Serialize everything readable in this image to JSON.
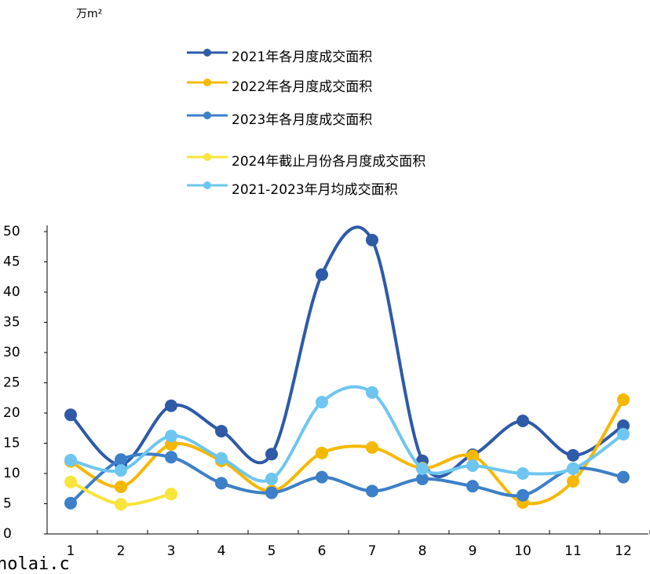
{
  "chart_data": {
    "type": "line",
    "unit_label": "万m²",
    "watermark": "nolai.c",
    "categories": [
      "1",
      "2",
      "3",
      "4",
      "5",
      "6",
      "7",
      "8",
      "9",
      "10",
      "11",
      "12"
    ],
    "series": [
      {
        "name": "2021年各月度成交面积",
        "color": "#2e5aa7",
        "values": [
          19.7,
          11.5,
          21.2,
          17.0,
          13.2,
          42.9,
          48.6,
          12.1,
          13.1,
          18.7,
          13.0,
          17.9
        ]
      },
      {
        "name": "2022年各月度成交面积",
        "color": "#f5b800",
        "values": [
          12.0,
          7.8,
          14.8,
          12.1,
          7.1,
          13.4,
          14.3,
          10.9,
          12.9,
          5.2,
          8.7,
          22.2
        ]
      },
      {
        "name": "2023年各月度成交面积",
        "color": "#3d7fc8",
        "values": [
          5.1,
          12.3,
          12.7,
          8.4,
          6.8,
          9.4,
          7.1,
          9.1,
          7.9,
          6.4,
          10.8,
          9.4
        ]
      },
      {
        "name": "2024年截止月份各月度成交面积",
        "color": "#f8e43a",
        "values": [
          8.6,
          4.9,
          6.6,
          null,
          null,
          null,
          null,
          null,
          null,
          null,
          null,
          null
        ]
      },
      {
        "name": "2021-2023年月均成交面积",
        "color": "#6ec6f0",
        "values": [
          12.2,
          10.5,
          16.2,
          12.5,
          9.1,
          21.8,
          23.4,
          10.8,
          11.3,
          10.0,
          10.8,
          16.5
        ]
      }
    ],
    "ylim": [
      0,
      50
    ],
    "yticks": [
      0,
      5,
      10,
      15,
      20,
      25,
      30,
      35,
      40,
      45,
      50
    ],
    "smooth": true,
    "markers": true
  }
}
